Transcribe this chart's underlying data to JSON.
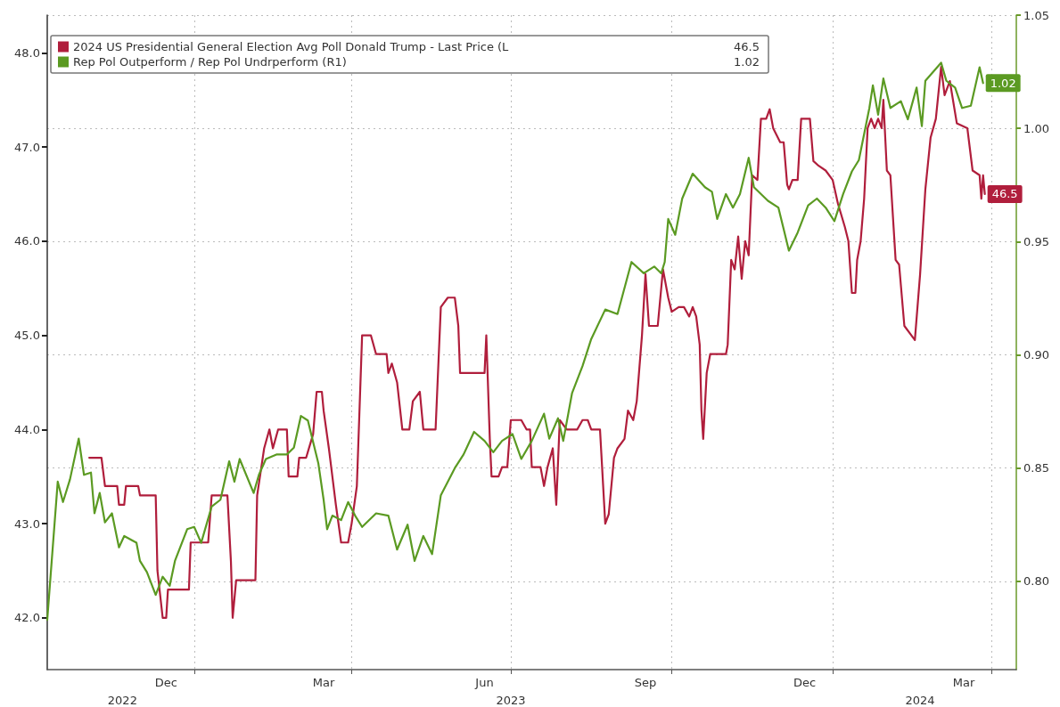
{
  "chart_data": {
    "type": "line",
    "legend": "top left",
    "grid": true,
    "marker": "none",
    "xlim": [
      "2022-10-09",
      "2024-04-15"
    ],
    "xticks": [
      {
        "value": "2022-12-16",
        "label": "Dec"
      },
      {
        "value": "2023-01-01",
        "label": null
      },
      {
        "value": "2023-03-16",
        "label": "Mar"
      },
      {
        "value": "2023-04-01",
        "label": null
      },
      {
        "value": "2023-06-16",
        "label": "Jun"
      },
      {
        "value": "2023-07-01",
        "label": null
      },
      {
        "value": "2023-09-16",
        "label": "Sep"
      },
      {
        "value": "2023-10-01",
        "label": null
      },
      {
        "value": "2023-12-16",
        "label": "Dec"
      },
      {
        "value": "2024-01-01",
        "label": null
      },
      {
        "value": "2024-03-16",
        "label": "Mar"
      },
      {
        "value": "2024-04-01",
        "label": null
      }
    ],
    "annotations": [
      "46.5",
      "1.02"
    ],
    "x2lim": [
      "2022-10-09",
      "2024-04-15"
    ],
    "x2ticks": [
      {
        "value": "2022-11-21",
        "label": "2022"
      },
      {
        "value": "2023-07-01",
        "label": "2023"
      },
      {
        "value": "2024-02-20",
        "label": "2024"
      }
    ],
    "ylim": [
      41.45,
      48.4
    ],
    "yticks": [
      {
        "value": 42,
        "label": "42.0"
      },
      {
        "value": 43,
        "label": "43.0"
      },
      {
        "value": 44,
        "label": "44.0"
      },
      {
        "value": 45,
        "label": "45.0"
      },
      {
        "value": 46,
        "label": "46.0"
      },
      {
        "value": 47,
        "label": "47.0"
      },
      {
        "value": 48,
        "label": "48.0"
      }
    ],
    "y2lim": [
      0.761,
      1.05
    ],
    "y2ticks": [
      {
        "value": 0.8,
        "label": "0.80"
      },
      {
        "value": 0.85,
        "label": "0.85"
      },
      {
        "value": 0.9,
        "label": "0.90"
      },
      {
        "value": 0.95,
        "label": "0.95"
      },
      {
        "value": 1.0,
        "label": "1.00"
      },
      {
        "value": 1.05,
        "label": "1.05"
      }
    ],
    "series": [
      {
        "name": "2024 US Presidential General Election Avg Poll Donald Trump - Last Price (L",
        "color": "#b01e3c",
        "x": [
          "2022-11-02",
          "2022-11-09",
          "2022-11-11",
          "2022-11-18",
          "2022-11-19",
          "2022-11-22",
          "2022-11-23",
          "2022-11-30",
          "2022-12-01",
          "2022-12-10",
          "2022-12-11",
          "2022-12-14",
          "2022-12-16",
          "2022-12-17",
          "2022-12-29",
          "2022-12-30",
          "2023-01-09",
          "2023-01-11",
          "2023-01-20",
          "2023-01-22",
          "2023-01-23",
          "2023-01-25",
          "2023-02-05",
          "2023-02-06",
          "2023-02-10",
          "2023-02-13",
          "2023-02-15",
          "2023-02-18",
          "2023-02-23",
          "2023-02-24",
          "2023-03-01",
          "2023-03-02",
          "2023-03-06",
          "2023-03-10",
          "2023-03-12",
          "2023-03-15",
          "2023-03-16",
          "2023-03-19",
          "2023-03-23",
          "2023-03-26",
          "2023-03-30",
          "2023-04-01",
          "2023-04-04",
          "2023-04-07",
          "2023-04-12",
          "2023-04-15",
          "2023-04-21",
          "2023-04-22",
          "2023-04-24",
          "2023-04-27",
          "2023-04-30",
          "2023-05-04",
          "2023-05-06",
          "2023-05-10",
          "2023-05-12",
          "2023-05-19",
          "2023-05-22",
          "2023-05-26",
          "2023-05-30",
          "2023-06-01",
          "2023-06-02",
          "2023-06-16",
          "2023-06-17",
          "2023-06-19",
          "2023-06-20",
          "2023-06-24",
          "2023-06-26",
          "2023-06-29",
          "2023-07-01",
          "2023-07-07",
          "2023-07-10",
          "2023-07-12",
          "2023-07-13",
          "2023-07-18",
          "2023-07-20",
          "2023-07-22",
          "2023-07-25",
          "2023-07-27",
          "2023-07-29",
          "2023-08-02",
          "2023-08-08",
          "2023-08-11",
          "2023-08-14",
          "2023-08-16",
          "2023-08-21",
          "2023-08-24",
          "2023-08-26",
          "2023-08-29",
          "2023-08-31",
          "2023-09-04",
          "2023-09-06",
          "2023-09-09",
          "2023-09-11",
          "2023-09-14",
          "2023-09-16",
          "2023-09-18",
          "2023-09-23",
          "2023-09-26",
          "2023-09-29",
          "2023-10-01",
          "2023-10-05",
          "2023-10-08",
          "2023-10-11",
          "2023-10-13",
          "2023-10-15",
          "2023-10-17",
          "2023-10-18",
          "2023-10-19",
          "2023-10-21",
          "2023-10-23",
          "2023-11-01",
          "2023-11-02",
          "2023-11-04",
          "2023-11-06",
          "2023-11-08",
          "2023-11-10",
          "2023-11-12",
          "2023-11-14",
          "2023-11-16",
          "2023-11-19",
          "2023-11-21",
          "2023-11-24",
          "2023-11-26",
          "2023-11-28",
          "2023-12-02",
          "2023-12-04",
          "2023-12-06",
          "2023-12-07",
          "2023-12-09",
          "2023-12-12",
          "2023-12-14",
          "2023-12-19",
          "2023-12-21",
          "2023-12-24",
          "2023-12-28",
          "2024-01-01",
          "2024-01-04",
          "2024-01-08",
          "2024-01-10",
          "2024-01-12",
          "2024-01-14",
          "2024-01-15",
          "2024-01-17",
          "2024-01-19",
          "2024-01-21",
          "2024-01-23",
          "2024-01-25",
          "2024-01-27",
          "2024-01-29",
          "2024-01-30",
          "2024-02-01",
          "2024-02-03",
          "2024-02-06",
          "2024-02-08",
          "2024-02-11",
          "2024-02-17",
          "2024-02-20",
          "2024-02-23",
          "2024-02-26",
          "2024-02-29",
          "2024-03-03",
          "2024-03-05",
          "2024-03-08",
          "2024-03-12",
          "2024-03-18",
          "2024-03-21",
          "2024-03-25",
          "2024-03-26",
          "2024-03-27",
          "2024-03-28"
        ],
        "values": [
          43.7,
          43.7,
          43.4,
          43.4,
          43.2,
          43.2,
          43.4,
          43.4,
          43.3,
          43.3,
          42.5,
          42.0,
          42.0,
          42.3,
          42.3,
          42.8,
          42.8,
          43.3,
          43.3,
          42.6,
          42.0,
          42.4,
          42.4,
          43.3,
          43.8,
          44.0,
          43.8,
          44.0,
          44.0,
          43.5,
          43.5,
          43.7,
          43.7,
          43.95,
          44.4,
          44.4,
          44.2,
          43.8,
          43.2,
          42.8,
          42.8,
          43.0,
          43.4,
          45.0,
          45.0,
          44.8,
          44.8,
          44.6,
          44.7,
          44.5,
          44.0,
          44.0,
          44.3,
          44.4,
          44.0,
          44.0,
          45.3,
          45.4,
          45.4,
          45.1,
          44.6,
          44.6,
          45.0,
          43.9,
          43.5,
          43.5,
          43.6,
          43.6,
          44.1,
          44.1,
          44.0,
          44.0,
          43.6,
          43.6,
          43.4,
          43.6,
          43.8,
          43.2,
          44.1,
          44.0,
          44.0,
          44.1,
          44.1,
          44.0,
          44.0,
          43.0,
          43.1,
          43.7,
          43.8,
          43.9,
          44.2,
          44.1,
          44.3,
          45.0,
          45.65,
          45.1,
          45.1,
          45.7,
          45.4,
          45.25,
          45.3,
          45.3,
          45.2,
          45.3,
          45.2,
          44.9,
          44.2,
          43.9,
          44.6,
          44.8,
          44.8,
          44.9,
          45.8,
          45.7,
          46.05,
          45.6,
          46.0,
          45.85,
          46.7,
          46.65,
          47.3,
          47.3,
          47.4,
          47.2,
          47.05,
          47.05,
          46.6,
          46.55,
          46.65,
          46.65,
          47.3,
          47.3,
          46.85,
          46.8,
          46.75,
          46.65,
          46.4,
          46.15,
          46.0,
          45.45,
          45.45,
          45.8,
          46.0,
          46.45,
          47.2,
          47.3,
          47.2,
          47.3,
          47.2,
          47.5,
          46.75,
          46.7,
          45.8,
          45.75,
          45.1,
          44.95,
          45.65,
          46.55,
          47.1,
          47.3,
          47.85,
          47.55,
          47.7,
          47.25,
          47.2,
          46.75,
          46.7,
          46.45,
          46.7,
          46.5
        ],
        "value_labels": [
          null,
          null,
          null,
          null,
          null,
          null,
          null,
          null,
          null,
          null,
          null,
          null,
          null,
          null,
          null,
          null,
          null,
          null,
          null,
          null,
          null,
          null,
          null,
          null,
          null,
          null,
          null,
          null,
          null,
          null,
          null,
          null,
          null,
          null,
          null,
          null,
          null,
          null,
          null,
          null,
          null,
          null,
          null,
          null,
          null,
          null,
          null,
          null,
          null,
          null,
          null,
          null,
          null,
          null,
          null,
          null,
          null,
          null,
          null,
          null,
          null,
          null,
          null,
          null,
          null,
          null,
          null,
          null,
          null,
          null,
          null,
          null,
          null,
          null,
          null,
          null,
          null,
          null,
          null,
          null,
          null,
          null,
          null,
          null,
          null,
          null,
          null,
          null,
          null,
          null,
          null,
          null,
          null,
          null,
          null,
          null,
          null,
          null,
          null,
          null,
          null,
          null,
          null,
          null,
          null,
          null,
          null,
          null,
          null,
          null,
          null,
          null,
          null,
          null,
          null,
          null,
          null,
          null,
          null,
          null,
          null,
          null,
          null,
          null,
          null,
          null,
          null,
          null,
          null,
          null,
          null,
          null,
          null,
          null,
          null,
          null,
          null,
          null,
          null,
          null,
          null,
          null,
          null,
          null,
          null,
          null,
          null,
          null,
          null,
          null,
          null,
          null,
          null,
          null,
          null,
          null,
          null,
          null,
          null,
          null,
          null,
          null,
          null,
          null,
          null,
          null,
          null,
          null,
          null,
          "46.5"
        ]
      },
      {
        "name": "Rep Pol Outperform / Rep Pol Undrperform (R1)",
        "color": "#5b9a22",
        "axis": "y2",
        "x": [
          "2022-10-09",
          "2022-10-15",
          "2022-10-18",
          "2022-10-22",
          "2022-10-27",
          "2022-10-30",
          "2022-11-03",
          "2022-11-05",
          "2022-11-08",
          "2022-11-11",
          "2022-11-15",
          "2022-11-19",
          "2022-11-22",
          "2022-11-29",
          "2022-12-01",
          "2022-12-05",
          "2022-12-10",
          "2022-12-14",
          "2022-12-18",
          "2022-12-21",
          "2022-12-28",
          "2023-01-01",
          "2023-01-05",
          "2023-01-11",
          "2023-01-16",
          "2023-01-21",
          "2023-01-24",
          "2023-01-27",
          "2023-02-04",
          "2023-02-07",
          "2023-02-11",
          "2023-02-17",
          "2023-02-23",
          "2023-02-27",
          "2023-03-03",
          "2023-03-07",
          "2023-03-13",
          "2023-03-16",
          "2023-03-18",
          "2023-03-21",
          "2023-03-26",
          "2023-03-30",
          "2023-04-03",
          "2023-04-07",
          "2023-04-15",
          "2023-04-22",
          "2023-04-27",
          "2023-05-03",
          "2023-05-07",
          "2023-05-12",
          "2023-05-17",
          "2023-05-22",
          "2023-05-30",
          "2023-06-04",
          "2023-06-10",
          "2023-06-16",
          "2023-06-21",
          "2023-06-26",
          "2023-07-02",
          "2023-07-07",
          "2023-07-13",
          "2023-07-20",
          "2023-07-23",
          "2023-07-28",
          "2023-07-31",
          "2023-08-05",
          "2023-08-11",
          "2023-08-16",
          "2023-08-24",
          "2023-08-31",
          "2023-09-08",
          "2023-09-15",
          "2023-09-21",
          "2023-09-25",
          "2023-09-27",
          "2023-09-29",
          "2023-10-03",
          "2023-10-07",
          "2023-10-13",
          "2023-10-20",
          "2023-10-24",
          "2023-10-27",
          "2023-11-01",
          "2023-11-05",
          "2023-11-09",
          "2023-11-14",
          "2023-11-17",
          "2023-11-25",
          "2023-12-01",
          "2023-12-07",
          "2023-12-12",
          "2023-12-18",
          "2023-12-23",
          "2023-12-28",
          "2024-01-02",
          "2024-01-07",
          "2024-01-12",
          "2024-01-16",
          "2024-01-22",
          "2024-01-24",
          "2024-01-27",
          "2024-01-30",
          "2024-02-03",
          "2024-02-09",
          "2024-02-13",
          "2024-02-18",
          "2024-02-21",
          "2024-02-23",
          "2024-03-03",
          "2024-03-06",
          "2024-03-11",
          "2024-03-15",
          "2024-03-20",
          "2024-03-25",
          "2024-03-27"
        ],
        "values": [
          0.783,
          0.844,
          0.835,
          0.845,
          0.863,
          0.847,
          0.848,
          0.83,
          0.839,
          0.826,
          0.83,
          0.815,
          0.82,
          0.817,
          0.809,
          0.804,
          0.794,
          0.802,
          0.798,
          0.809,
          0.823,
          0.824,
          0.817,
          0.833,
          0.836,
          0.853,
          0.844,
          0.854,
          0.839,
          0.847,
          0.854,
          0.856,
          0.856,
          0.859,
          0.873,
          0.871,
          0.852,
          0.836,
          0.823,
          0.829,
          0.827,
          0.835,
          0.829,
          0.824,
          0.83,
          0.829,
          0.814,
          0.825,
          0.809,
          0.82,
          0.812,
          0.838,
          0.85,
          0.856,
          0.866,
          0.862,
          0.857,
          0.862,
          0.865,
          0.854,
          0.862,
          0.874,
          0.863,
          0.872,
          0.862,
          0.883,
          0.895,
          0.907,
          0.92,
          0.918,
          0.941,
          0.936,
          0.939,
          0.936,
          0.941,
          0.96,
          0.953,
          0.969,
          0.98,
          0.974,
          0.972,
          0.96,
          0.971,
          0.965,
          0.971,
          0.987,
          0.974,
          0.968,
          0.965,
          0.946,
          0.954,
          0.966,
          0.969,
          0.965,
          0.959,
          0.971,
          0.981,
          0.986,
          1.009,
          1.019,
          1.006,
          1.022,
          1.009,
          1.012,
          1.004,
          1.018,
          1.001,
          1.021,
          1.029,
          1.021,
          1.018,
          1.009,
          1.01,
          1.027,
          1.02
        ],
        "value_labels": [
          null,
          null,
          null,
          null,
          null,
          null,
          null,
          null,
          null,
          null,
          null,
          null,
          null,
          null,
          null,
          null,
          null,
          null,
          null,
          null,
          null,
          null,
          null,
          null,
          null,
          null,
          null,
          null,
          null,
          null,
          null,
          null,
          null,
          null,
          null,
          null,
          null,
          null,
          null,
          null,
          null,
          null,
          null,
          null,
          null,
          null,
          null,
          null,
          null,
          null,
          null,
          null,
          null,
          null,
          null,
          null,
          null,
          null,
          null,
          null,
          null,
          null,
          null,
          null,
          null,
          null,
          null,
          null,
          null,
          null,
          null,
          null,
          null,
          null,
          null,
          null,
          null,
          null,
          null,
          null,
          null,
          null,
          null,
          null,
          null,
          null,
          null,
          null,
          null,
          null,
          null,
          null,
          null,
          null,
          null,
          null,
          null,
          null,
          null,
          null,
          null,
          null,
          null,
          null,
          null,
          null,
          null,
          null,
          null,
          null,
          null,
          null,
          null,
          null,
          "1.02"
        ]
      }
    ]
  }
}
